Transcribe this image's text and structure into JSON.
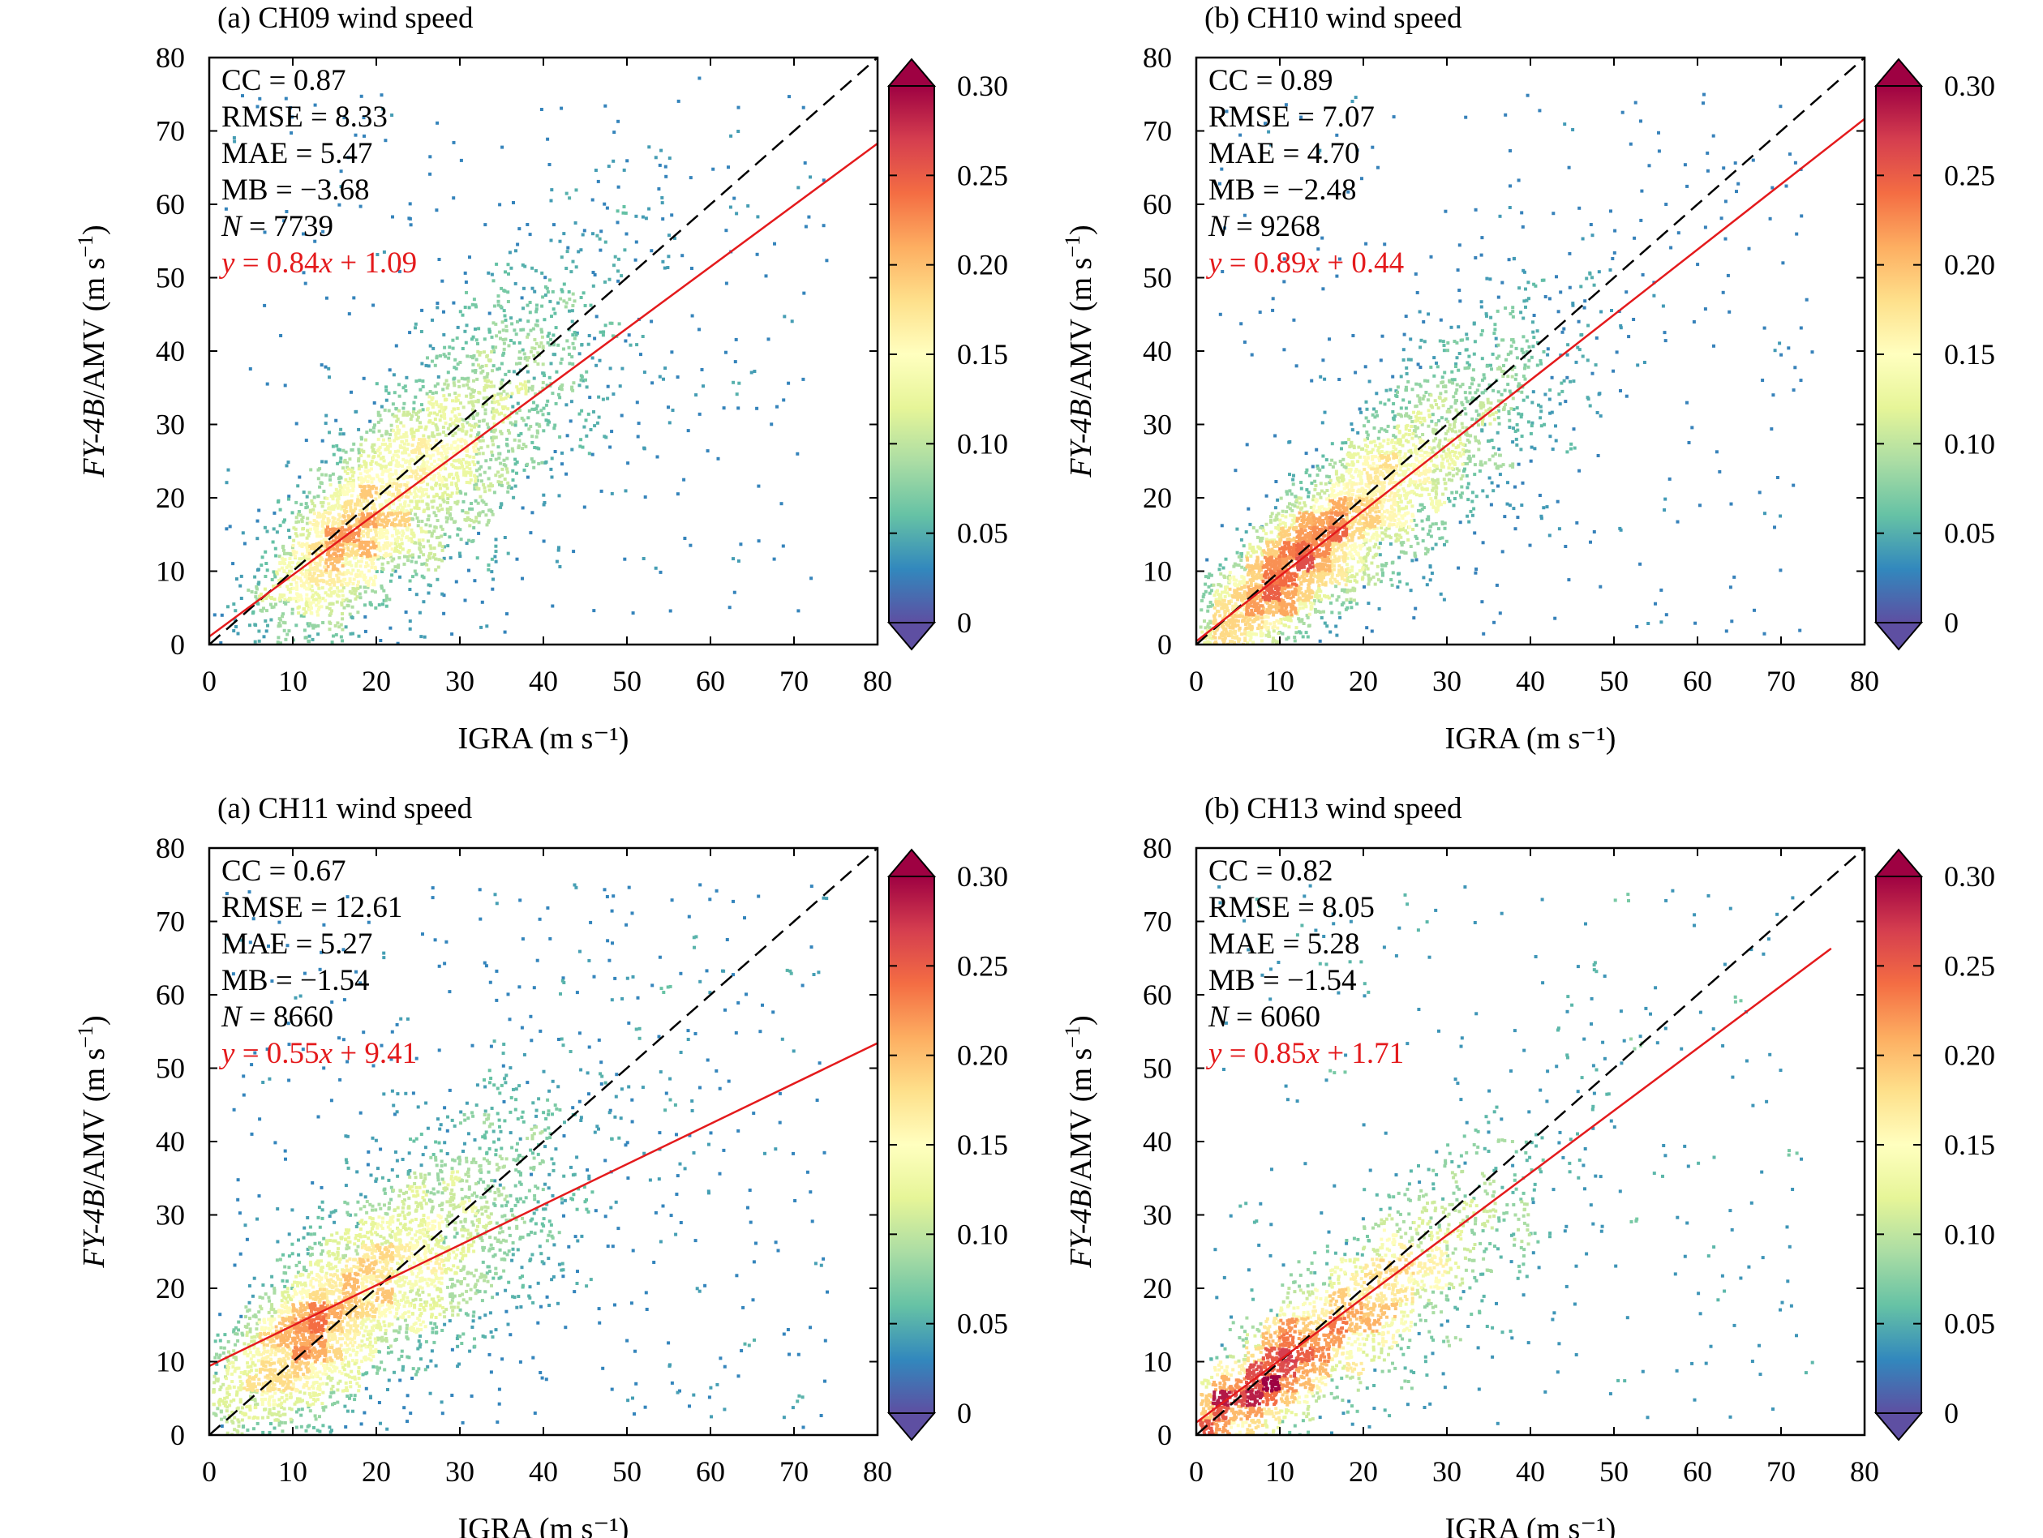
{
  "figure": {
    "colorbar_ticks": [
      "0",
      "0.05",
      "0.10",
      "0.15",
      "0.20",
      "0.25",
      "0.30"
    ],
    "colormap": [
      "#5e4fa2",
      "#3288bd",
      "#66c2a5",
      "#abdda4",
      "#e6f598",
      "#ffffbf",
      "#fee08b",
      "#fdae61",
      "#f46d43",
      "#d53e4f",
      "#9e0142"
    ],
    "fit_line_color": "#e41a1c",
    "identity_line_color": "#000000"
  },
  "chart_data": [
    {
      "type": "scatter",
      "title": "(a) CH09 wind speed",
      "xlabel": "IGRA (m s⁻¹)",
      "ylabel_parts": [
        "FY-4B",
        "/AMV (m s",
        "−1",
        ")"
      ],
      "xlim": [
        0,
        80
      ],
      "ylim": [
        0,
        80
      ],
      "xticks": [
        0,
        10,
        20,
        30,
        40,
        50,
        60,
        70,
        80
      ],
      "yticks": [
        0,
        10,
        20,
        30,
        40,
        50,
        60,
        70,
        80
      ],
      "stats": [
        "CC = 0.87",
        "RMSE = 8.33",
        "MAE = 5.47",
        "MB = −3.68"
      ],
      "n_label": "N",
      "n_value": " = 7739",
      "fit_label_parts": [
        "y",
        " = 0.84",
        "x",
        " + 1.09"
      ],
      "fit": {
        "slope": 0.84,
        "intercept": 1.09,
        "x_range": [
          0,
          80
        ]
      },
      "identity_line": true,
      "n_points": 7739,
      "density_peak": [
        18,
        17
      ],
      "density_max": 0.22,
      "spread": 6.5,
      "outlier_fraction": 0.08,
      "colorbar_range": [
        0,
        0.3
      ]
    },
    {
      "type": "scatter",
      "title": "(b) CH10 wind speed",
      "xlabel": "IGRA (m s⁻¹)",
      "ylabel_parts": [
        "FY-4B",
        "/AMV (m s",
        "−1",
        ")"
      ],
      "xlim": [
        0,
        80
      ],
      "ylim": [
        0,
        80
      ],
      "xticks": [
        0,
        10,
        20,
        30,
        40,
        50,
        60,
        70,
        80
      ],
      "yticks": [
        0,
        10,
        20,
        30,
        40,
        50,
        60,
        70,
        80
      ],
      "stats": [
        "CC = 0.89",
        "RMSE = 7.07",
        "MAE = 4.70",
        "MB = −2.48"
      ],
      "n_label": "N",
      "n_value": " = 9268",
      "fit_label_parts": [
        "y",
        " = 0.89",
        "x",
        " + 0.44"
      ],
      "fit": {
        "slope": 0.89,
        "intercept": 0.44,
        "x_range": [
          0,
          80
        ]
      },
      "identity_line": true,
      "n_points": 9268,
      "density_peak": [
        12,
        11
      ],
      "density_max": 0.26,
      "spread": 5.5,
      "outlier_fraction": 0.07,
      "colorbar_range": [
        0,
        0.3
      ]
    },
    {
      "type": "scatter",
      "title": "(a) CH11 wind speed",
      "xlabel": "IGRA (m s⁻¹)",
      "ylabel_parts": [
        "FY-4B",
        "/AMV (m s",
        "−1",
        ")"
      ],
      "xlim": [
        0,
        80
      ],
      "ylim": [
        0,
        80
      ],
      "xticks": [
        0,
        10,
        20,
        30,
        40,
        50,
        60,
        70,
        80
      ],
      "yticks": [
        0,
        10,
        20,
        30,
        40,
        50,
        60,
        70,
        80
      ],
      "stats": [
        "CC = 0.67",
        "RMSE = 12.61",
        "MAE = 5.27",
        "MB = −1.54"
      ],
      "n_label": "N",
      "n_value": " = 8660",
      "fit_label_parts": [
        "y",
        " = 0.55",
        "x",
        " + 9.41"
      ],
      "fit": {
        "slope": 0.55,
        "intercept": 9.41,
        "x_range": [
          0,
          80
        ]
      },
      "identity_line": true,
      "n_points": 8660,
      "density_peak": [
        13,
        13
      ],
      "density_max": 0.24,
      "spread": 6.5,
      "outlier_fraction": 0.11,
      "colorbar_range": [
        0,
        0.3
      ]
    },
    {
      "type": "scatter",
      "title": "(b) CH13 wind speed",
      "xlabel": "IGRA (m s⁻¹)",
      "ylabel_parts": [
        "FY-4B",
        "/AMV (m s",
        "−1",
        ")"
      ],
      "xlim": [
        0,
        80
      ],
      "ylim": [
        0,
        80
      ],
      "xticks": [
        0,
        10,
        20,
        30,
        40,
        50,
        60,
        70,
        80
      ],
      "yticks": [
        0,
        10,
        20,
        30,
        40,
        50,
        60,
        70,
        80
      ],
      "stats": [
        "CC = 0.82",
        "RMSE = 8.05",
        "MAE = 5.28",
        "MB = −1.54"
      ],
      "n_label": "N",
      "n_value": " = 6060",
      "fit_label_parts": [
        "y",
        " = 0.85",
        "x",
        " + 1.71"
      ],
      "fit": {
        "slope": 0.85,
        "intercept": 1.71,
        "x_range": [
          0,
          76
        ]
      },
      "identity_line": true,
      "n_points": 6060,
      "density_peak": [
        10,
        8
      ],
      "density_max": 0.3,
      "spread": 5.0,
      "outlier_fraction": 0.1,
      "colorbar_range": [
        0,
        0.3
      ]
    }
  ]
}
